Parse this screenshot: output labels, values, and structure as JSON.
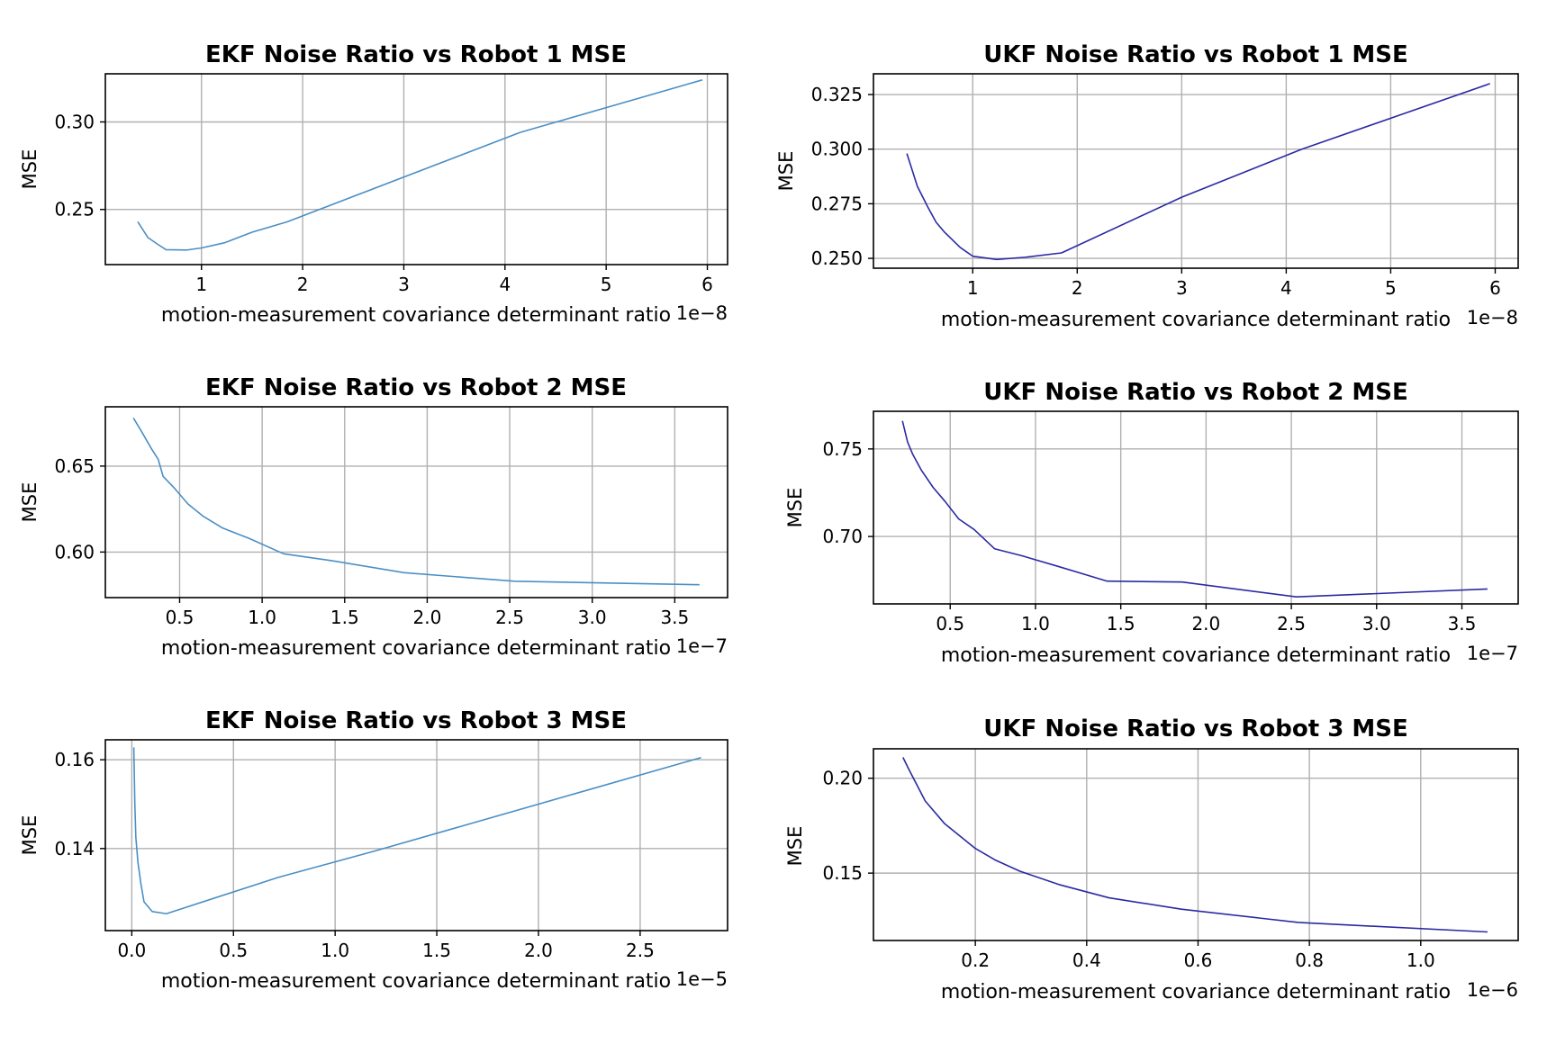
{
  "colors": {
    "ekf": "#4b8fc4",
    "ukf": "#2a2aa3",
    "grid": "#b0b0b0"
  },
  "chart_data": [
    {
      "type": "line",
      "title": "EKF Noise Ratio vs Robot 1 MSE",
      "xlabel": "motion-measurement covariance determinant ratio",
      "ylabel": "MSE",
      "x_offset_label": "1e−8",
      "x_scale_exp": -8,
      "grid": true,
      "color": "ekf",
      "xlim": [
        0.05,
        6.2
      ],
      "ylim": [
        0.2185,
        0.3275
      ],
      "xticks": [
        1,
        2,
        3,
        4,
        5,
        6
      ],
      "xtick_labels": [
        "1",
        "2",
        "3",
        "4",
        "5",
        "6"
      ],
      "yticks": [
        0.25,
        0.3
      ],
      "ytick_labels": [
        "0.25",
        "0.30"
      ],
      "x": [
        0.37,
        0.47,
        0.57,
        0.65,
        0.85,
        1.0,
        1.23,
        1.5,
        1.85,
        4.15,
        5.95
      ],
      "y": [
        0.243,
        0.234,
        0.23,
        0.227,
        0.2268,
        0.228,
        0.231,
        0.237,
        0.243,
        0.294,
        0.324
      ]
    },
    {
      "type": "line",
      "title": "UKF Noise Ratio vs Robot 1 MSE",
      "xlabel": "motion-measurement covariance determinant ratio",
      "ylabel": "MSE",
      "x_offset_label": "1e−8",
      "x_scale_exp": -8,
      "grid": true,
      "color": "ukf",
      "xlim": [
        0.05,
        6.22
      ],
      "ylim": [
        0.2455,
        0.3345
      ],
      "xticks": [
        1,
        2,
        3,
        4,
        5,
        6
      ],
      "xtick_labels": [
        "1",
        "2",
        "3",
        "4",
        "5",
        "6"
      ],
      "yticks": [
        0.25,
        0.275,
        0.3,
        0.325
      ],
      "ytick_labels": [
        "0.250",
        "0.275",
        "0.300",
        "0.325"
      ],
      "x": [
        0.37,
        0.41,
        0.47,
        0.57,
        0.65,
        0.73,
        0.88,
        1.0,
        1.23,
        1.5,
        1.85,
        3.0,
        4.15,
        5.95
      ],
      "y": [
        0.298,
        0.292,
        0.283,
        0.2735,
        0.2665,
        0.262,
        0.255,
        0.251,
        0.2495,
        0.2505,
        0.2525,
        0.278,
        0.3,
        0.33
      ]
    },
    {
      "type": "line",
      "title": "EKF Noise Ratio vs Robot 2 MSE",
      "xlabel": "motion-measurement covariance determinant ratio",
      "ylabel": "MSE",
      "x_offset_label": "1e−7",
      "x_scale_exp": -7,
      "grid": true,
      "color": "ekf",
      "xlim": [
        0.05,
        3.82
      ],
      "ylim": [
        0.5735,
        0.6845
      ],
      "xticks": [
        0.5,
        1.0,
        1.5,
        2.0,
        2.5,
        3.0,
        3.5
      ],
      "xtick_labels": [
        "0.5",
        "1.0",
        "1.5",
        "2.0",
        "2.5",
        "3.0",
        "3.5"
      ],
      "yticks": [
        0.6,
        0.65
      ],
      "ytick_labels": [
        "0.60",
        "0.65"
      ],
      "x": [
        0.22,
        0.27,
        0.33,
        0.37,
        0.4,
        0.47,
        0.55,
        0.64,
        0.76,
        0.92,
        1.13,
        1.42,
        1.86,
        2.53,
        3.65
      ],
      "y": [
        0.678,
        0.67,
        0.66,
        0.654,
        0.644,
        0.637,
        0.628,
        0.621,
        0.614,
        0.608,
        0.599,
        0.595,
        0.588,
        0.583,
        0.581
      ]
    },
    {
      "type": "line",
      "title": "UKF Noise Ratio vs Robot 2 MSE",
      "xlabel": "motion-measurement covariance determinant ratio",
      "ylabel": "MSE",
      "x_offset_label": "1e−7",
      "x_scale_exp": -7,
      "grid": true,
      "color": "ukf",
      "xlim": [
        0.05,
        3.83
      ],
      "ylim": [
        0.6615,
        0.7715
      ],
      "xticks": [
        0.5,
        1.0,
        1.5,
        2.0,
        2.5,
        3.0,
        3.5
      ],
      "xtick_labels": [
        "0.5",
        "1.0",
        "1.5",
        "2.0",
        "2.5",
        "3.0",
        "3.5"
      ],
      "yticks": [
        0.7,
        0.75
      ],
      "ytick_labels": [
        "0.70",
        "0.75"
      ],
      "x": [
        0.22,
        0.25,
        0.28,
        0.33,
        0.4,
        0.47,
        0.55,
        0.64,
        0.76,
        0.92,
        1.13,
        1.42,
        1.86,
        2.53,
        3.65
      ],
      "y": [
        0.766,
        0.754,
        0.747,
        0.738,
        0.728,
        0.72,
        0.71,
        0.704,
        0.693,
        0.689,
        0.683,
        0.6745,
        0.674,
        0.6655,
        0.67
      ]
    },
    {
      "type": "line",
      "title": "EKF Noise Ratio vs Robot 3 MSE",
      "xlabel": "motion-measurement covariance determinant ratio",
      "ylabel": "MSE",
      "x_offset_label": "1e−5",
      "x_scale_exp": -5,
      "grid": true,
      "color": "ekf",
      "xlim": [
        -0.13,
        2.93
      ],
      "ylim": [
        0.1215,
        0.1645
      ],
      "xticks": [
        0.0,
        0.5,
        1.0,
        1.5,
        2.0,
        2.5
      ],
      "xtick_labels": [
        "0.0",
        "0.5",
        "1.0",
        "1.5",
        "2.0",
        "2.5"
      ],
      "yticks": [
        0.14,
        0.16
      ],
      "ytick_labels": [
        "0.14",
        "0.16"
      ],
      "x": [
        0.01,
        0.015,
        0.02,
        0.03,
        0.045,
        0.06,
        0.1,
        0.17,
        0.72,
        1.2,
        2.8
      ],
      "y": [
        0.1628,
        0.15,
        0.1425,
        0.137,
        0.132,
        0.128,
        0.1258,
        0.1253,
        0.1335,
        0.1395,
        0.1605
      ]
    },
    {
      "type": "line",
      "title": "UKF Noise Ratio vs Robot 3 MSE",
      "xlabel": "motion-measurement covariance determinant ratio",
      "ylabel": "MSE",
      "x_offset_label": "1e−6",
      "x_scale_exp": -6,
      "grid": true,
      "color": "ukf",
      "xlim": [
        0.017,
        1.175
      ],
      "ylim": [
        0.1145,
        0.2155
      ],
      "xticks": [
        0.2,
        0.4,
        0.6,
        0.8,
        1.0
      ],
      "xtick_labels": [
        "0.2",
        "0.4",
        "0.6",
        "0.8",
        "1.0"
      ],
      "yticks": [
        0.15,
        0.2
      ],
      "ytick_labels": [
        "0.15",
        "0.20"
      ],
      "x": [
        0.07,
        0.08,
        0.11,
        0.145,
        0.2,
        0.235,
        0.28,
        0.35,
        0.44,
        0.57,
        0.78,
        1.12
      ],
      "y": [
        0.211,
        0.205,
        0.188,
        0.176,
        0.163,
        0.157,
        0.151,
        0.144,
        0.137,
        0.131,
        0.124,
        0.119
      ]
    }
  ]
}
